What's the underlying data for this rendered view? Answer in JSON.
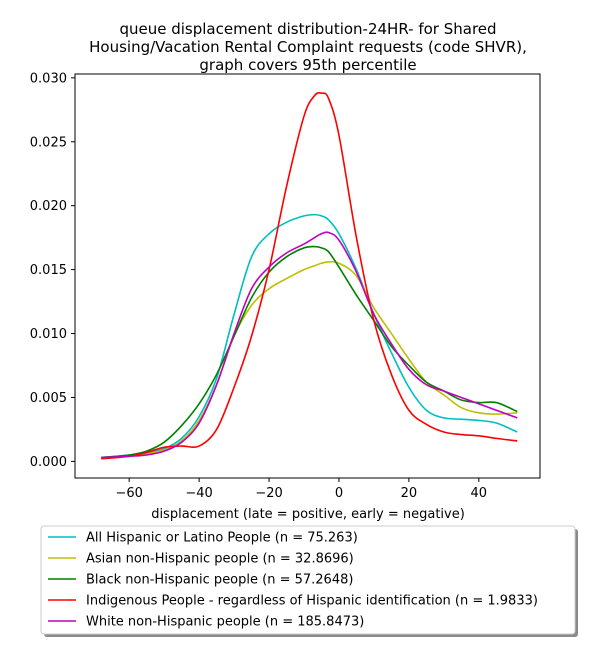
{
  "chart_data": {
    "type": "line",
    "title": [
      "queue displacement distribution-24HR-  for Shared",
      "Housing/Vacation Rental Complaint  requests (code SHVR),",
      "graph covers 95th percentile"
    ],
    "xlabel": "displacement (late = positive, early = negative)",
    "ylabel": "",
    "xlim": [
      -75.5,
      57.5
    ],
    "ylim": [
      -0.0013,
      0.0303
    ],
    "xticks": [
      -60,
      -40,
      -20,
      0,
      20,
      40
    ],
    "xtick_labels": [
      "−60",
      "−40",
      "−20",
      "0",
      "20",
      "40"
    ],
    "yticks": [
      0.0,
      0.005,
      0.01,
      0.015,
      0.02,
      0.025,
      0.03
    ],
    "ytick_labels": [
      "0.000",
      "0.005",
      "0.010",
      "0.015",
      "0.020",
      "0.025",
      "0.030"
    ],
    "grid": false,
    "legend_position": "below",
    "x": [
      -68,
      -60,
      -55,
      -50,
      -45,
      -40,
      -35,
      -30,
      -25,
      -20,
      -15,
      -10,
      -7,
      -5,
      -3,
      0,
      5,
      10,
      15,
      20,
      25,
      30,
      35,
      40,
      45,
      51
    ],
    "series": [
      {
        "name": "All Hispanic or Latino People (n = 75.263)",
        "color": "#00bfbf",
        "values": [
          0.0003,
          0.0005,
          0.0007,
          0.001,
          0.0018,
          0.0035,
          0.0065,
          0.0115,
          0.016,
          0.0178,
          0.0187,
          0.0192,
          0.0193,
          0.0192,
          0.0189,
          0.0178,
          0.015,
          0.0115,
          0.0085,
          0.0058,
          0.004,
          0.0034,
          0.0033,
          0.0032,
          0.003,
          0.0023
        ]
      },
      {
        "name": "Asian non-Hispanic people (n = 32.8696)",
        "color": "#bfbf00",
        "values": [
          0.0003,
          0.0004,
          0.0006,
          0.0009,
          0.0016,
          0.0032,
          0.006,
          0.0098,
          0.0122,
          0.0135,
          0.0143,
          0.015,
          0.0153,
          0.0155,
          0.0156,
          0.0155,
          0.0145,
          0.012,
          0.01,
          0.008,
          0.0062,
          0.0052,
          0.0042,
          0.0038,
          0.0037,
          0.0038
        ]
      },
      {
        "name": "Black non-Hispanic people (n = 57.2648)",
        "color": "#008000",
        "values": [
          0.0003,
          0.0005,
          0.0008,
          0.0015,
          0.0028,
          0.0045,
          0.0068,
          0.0098,
          0.0128,
          0.0148,
          0.016,
          0.0167,
          0.0168,
          0.0167,
          0.0164,
          0.0152,
          0.013,
          0.011,
          0.009,
          0.0075,
          0.0062,
          0.0055,
          0.0048,
          0.0046,
          0.0046,
          0.0039
        ]
      },
      {
        "name": "Indigenous People - regardless of Hispanic identification (n = 1.9833)",
        "color": "#ff0000",
        "values": [
          0.0002,
          0.0004,
          0.0007,
          0.0011,
          0.0012,
          0.0012,
          0.0025,
          0.0058,
          0.0098,
          0.015,
          0.0215,
          0.027,
          0.0286,
          0.0288,
          0.0284,
          0.0255,
          0.0175,
          0.011,
          0.0068,
          0.004,
          0.0029,
          0.0023,
          0.0021,
          0.002,
          0.0018,
          0.0016
        ]
      },
      {
        "name": "White non-Hispanic people (n = 185.8473)",
        "color": "#bf00bf",
        "values": [
          0.0003,
          0.0004,
          0.0005,
          0.0008,
          0.0015,
          0.003,
          0.006,
          0.01,
          0.0135,
          0.0152,
          0.0163,
          0.017,
          0.0175,
          0.0178,
          0.0179,
          0.0173,
          0.0148,
          0.0115,
          0.0092,
          0.0072,
          0.006,
          0.0055,
          0.005,
          0.0045,
          0.004,
          0.0034
        ]
      }
    ]
  }
}
